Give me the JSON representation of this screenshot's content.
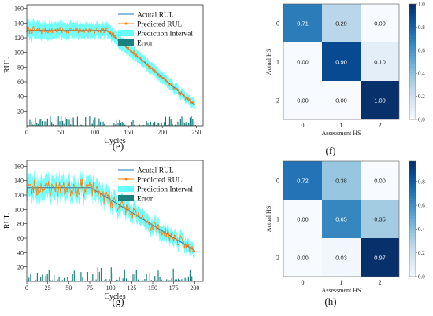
{
  "chart_data": [
    {
      "type": "line",
      "panel_label": "(e)",
      "xlabel": "Cycles",
      "ylabel": "RUL",
      "xlim": [
        0,
        260
      ],
      "ylim": [
        0,
        165
      ],
      "xticks": [
        0,
        50,
        100,
        150,
        200,
        250
      ],
      "yticks": [
        20,
        40,
        60,
        80,
        100,
        120,
        140,
        160
      ],
      "legend": [
        "Acutal RUL",
        "Predicted RUL",
        "Prediction Interval",
        "Error"
      ],
      "legend_position": "top-right",
      "grid": false,
      "series": [
        {
          "name": "Acutal RUL",
          "style": "piecewise-linear",
          "x": [
            0,
            118,
            248
          ],
          "y": [
            130,
            130,
            28
          ]
        },
        {
          "name": "Predicted RUL",
          "style": "noisy-line-with-dots",
          "noise_amplitude": 4,
          "interval_halfwidth": 12
        },
        {
          "name": "Prediction Interval",
          "style": "band"
        },
        {
          "name": "Error",
          "style": "bars",
          "max": 14
        }
      ],
      "x_max_data": 248,
      "seed": 7
    },
    {
      "type": "line",
      "panel_label": "(g)",
      "xlabel": "Cycles",
      "ylabel": "RUL",
      "xlim": [
        0,
        210
      ],
      "ylim": [
        0,
        168
      ],
      "xticks": [
        0,
        25,
        50,
        75,
        100,
        125,
        150,
        175,
        200
      ],
      "yticks": [
        20,
        40,
        60,
        80,
        100,
        120,
        140,
        160
      ],
      "legend": [
        "Acutal RUL",
        "Predicted RUL",
        "Prediction Interval",
        "Error"
      ],
      "legend_position": "top-right",
      "grid": false,
      "series": [
        {
          "name": "Acutal RUL",
          "style": "piecewise-linear",
          "x": [
            0,
            76,
            200
          ],
          "y": [
            130,
            130,
            43
          ]
        },
        {
          "name": "Predicted RUL",
          "style": "noisy-line-with-dots",
          "noise_amplitude": 11,
          "interval_halfwidth": 16
        },
        {
          "name": "Prediction Interval",
          "style": "band"
        },
        {
          "name": "Error",
          "style": "bars",
          "max": 20
        }
      ],
      "x_max_data": 200,
      "seed": 23
    },
    {
      "type": "heatmap",
      "panel_label": "(f)",
      "xlabel": "Assessment HS",
      "ylabel": "Actual HS",
      "categories": [
        "0",
        "1",
        "2"
      ],
      "values": [
        [
          0.71,
          0.29,
          0.0
        ],
        [
          0.0,
          0.9,
          0.1
        ],
        [
          0.0,
          0.0,
          1.0
        ]
      ],
      "colorbar_ticks": [
        "0.0",
        "0.2",
        "0.4",
        "0.6",
        "0.8",
        "1.0"
      ],
      "colorbar_range": [
        0,
        1.0
      ]
    },
    {
      "type": "heatmap",
      "panel_label": "(h)",
      "xlabel": "Assessment HS",
      "ylabel": "Actual HS",
      "categories": [
        "0",
        "1",
        "2"
      ],
      "values": [
        [
          0.72,
          0.38,
          0.0
        ],
        [
          0.0,
          0.65,
          0.35
        ],
        [
          0.0,
          0.03,
          0.97
        ]
      ],
      "colorbar_ticks": [
        "0.0",
        "0.2",
        "0.4",
        "0.6",
        "0.8"
      ],
      "colorbar_range": [
        0,
        0.97
      ]
    }
  ],
  "colors": {
    "actual": "#1f77b4",
    "predicted": "#ff7f0e",
    "interval": "#00ffff",
    "error": "#1b8080"
  }
}
